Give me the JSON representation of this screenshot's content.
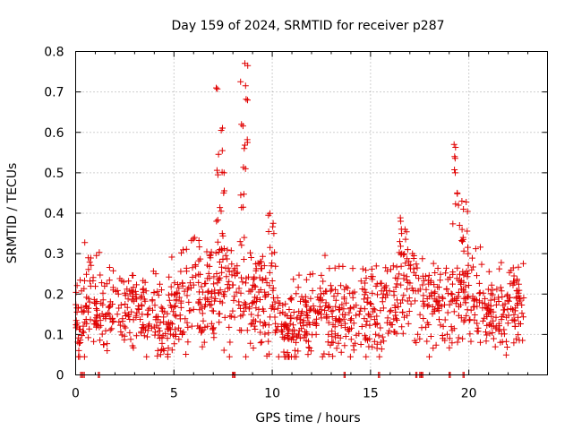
{
  "chart_data": {
    "type": "scatter",
    "title": "Day 159 of 2024, SRMTID for receiver p287",
    "xlabel": "GPS time / hours",
    "ylabel": "SRMTID / TECUs",
    "xlim": [
      0,
      24
    ],
    "ylim": [
      0,
      0.8
    ],
    "x_ticks": [
      0,
      5,
      10,
      15,
      20
    ],
    "y_ticks": [
      0,
      0.1,
      0.2,
      0.3,
      0.4,
      0.5,
      0.6,
      0.7,
      0.8
    ],
    "x_tick_labels": [
      "0",
      "5",
      "10",
      "15",
      "20"
    ],
    "y_tick_labels": [
      "0",
      "0.1",
      "0.2",
      "0.3",
      "0.4",
      "0.5",
      "0.6",
      "0.7",
      "0.8"
    ],
    "grid": true,
    "marker": "plus",
    "color": "#e00000",
    "series": [
      {
        "name": "SRMTID",
        "baseline": [
          [
            0.0,
            0.13
          ],
          [
            0.5,
            0.16
          ],
          [
            0.8,
            0.2
          ],
          [
            1.0,
            0.17
          ],
          [
            1.5,
            0.15
          ],
          [
            2.0,
            0.17
          ],
          [
            2.5,
            0.16
          ],
          [
            3.0,
            0.16
          ],
          [
            3.5,
            0.17
          ],
          [
            4.0,
            0.13
          ],
          [
            4.5,
            0.12
          ],
          [
            5.0,
            0.14
          ],
          [
            5.5,
            0.18
          ],
          [
            6.0,
            0.22
          ],
          [
            6.5,
            0.2
          ],
          [
            7.0,
            0.21
          ],
          [
            7.5,
            0.22
          ],
          [
            8.0,
            0.2
          ],
          [
            8.5,
            0.22
          ],
          [
            9.0,
            0.2
          ],
          [
            9.5,
            0.18
          ],
          [
            10.0,
            0.17
          ],
          [
            10.5,
            0.14
          ],
          [
            11.0,
            0.11
          ],
          [
            11.5,
            0.13
          ],
          [
            12.0,
            0.14
          ],
          [
            12.5,
            0.15
          ],
          [
            13.0,
            0.14
          ],
          [
            13.5,
            0.14
          ],
          [
            14.0,
            0.14
          ],
          [
            14.5,
            0.14
          ],
          [
            15.0,
            0.15
          ],
          [
            15.5,
            0.16
          ],
          [
            16.0,
            0.18
          ],
          [
            16.5,
            0.2
          ],
          [
            17.0,
            0.22
          ],
          [
            17.5,
            0.2
          ],
          [
            18.0,
            0.17
          ],
          [
            18.5,
            0.18
          ],
          [
            19.0,
            0.17
          ],
          [
            19.5,
            0.2
          ],
          [
            20.0,
            0.24
          ],
          [
            20.5,
            0.16
          ],
          [
            21.0,
            0.14
          ],
          [
            21.5,
            0.14
          ],
          [
            22.0,
            0.15
          ],
          [
            22.5,
            0.17
          ],
          [
            22.8,
            0.16
          ]
        ],
        "peaks": [
          {
            "x": 7.35,
            "values": [
              0.71,
              0.605,
              0.555,
              0.5,
              0.495,
              0.45,
              0.405,
              0.38,
              0.35,
              0.31
            ]
          },
          {
            "x": 8.55,
            "values": [
              0.765,
              0.725,
              0.68,
              0.62,
              0.575,
              0.56,
              0.51,
              0.445,
              0.415,
              0.33
            ]
          },
          {
            "x": 10.0,
            "values": [
              0.395,
              0.375,
              0.35,
              0.3,
              0.27
            ]
          },
          {
            "x": 16.7,
            "values": [
              0.38,
              0.36,
              0.35,
              0.31,
              0.3
            ]
          },
          {
            "x": 19.4,
            "values": [
              0.57,
              0.54,
              0.5,
              0.45,
              0.42,
              0.37
            ]
          },
          {
            "x": 19.85,
            "values": [
              0.43,
              0.41,
              0.36,
              0.33,
              0.3
            ]
          }
        ],
        "zero_values_x": [
          0.25,
          0.38,
          1.15,
          7.98,
          8.05,
          13.65,
          15.4,
          17.3,
          17.5,
          17.6,
          19.0,
          19.7
        ]
      }
    ]
  }
}
